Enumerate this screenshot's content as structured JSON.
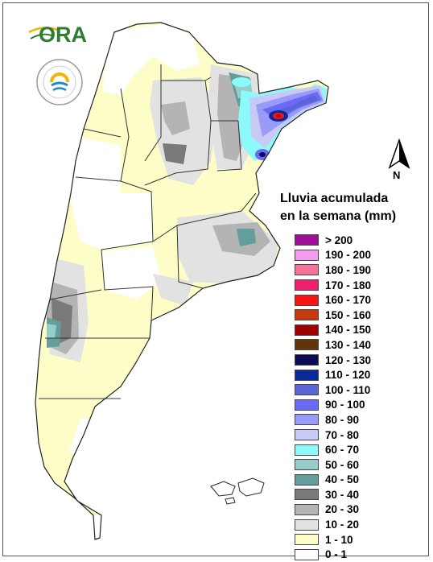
{
  "logo": {
    "text": "ORA"
  },
  "seal": {
    "text": "SERVICIO METEOROLÓGICO NACIONAL · ARGENTINA ·"
  },
  "north_arrow": {
    "label": "N"
  },
  "legend": {
    "title_line1": "Lluvia acumulada",
    "title_line2": "en la semana (mm)",
    "items": [
      {
        "label": "> 200",
        "color": "#9c0f96"
      },
      {
        "label": "190 - 200",
        "color": "#f59af2"
      },
      {
        "label": "180 - 190",
        "color": "#f5709a"
      },
      {
        "label": "170 - 180",
        "color": "#ef1f6e"
      },
      {
        "label": "160 - 170",
        "color": "#fb1313"
      },
      {
        "label": "150 - 160",
        "color": "#c83a0e"
      },
      {
        "label": "140 - 150",
        "color": "#a00000"
      },
      {
        "label": "130 - 140",
        "color": "#63330a"
      },
      {
        "label": "120 - 130",
        "color": "#0a0a55"
      },
      {
        "label": "110 - 120",
        "color": "#0a2a9a"
      },
      {
        "label": "100 - 110",
        "color": "#5a66d6"
      },
      {
        "label": "90 - 100",
        "color": "#6a6af8"
      },
      {
        "label": "80 - 90",
        "color": "#9a9afa"
      },
      {
        "label": "70 - 80",
        "color": "#c8caf5"
      },
      {
        "label": "60 - 70",
        "color": "#8cfafa"
      },
      {
        "label": "50 - 60",
        "color": "#96ccca"
      },
      {
        "label": "40 - 50",
        "color": "#649e9c"
      },
      {
        "label": "30 - 40",
        "color": "#7a7a7a"
      },
      {
        "label": "20 - 30",
        "color": "#b4b4b4"
      },
      {
        "label": "10 - 20",
        "color": "#e2e2e2"
      },
      {
        "label": "1 - 10",
        "color": "#fdfdc8"
      },
      {
        "label": "0 - 1",
        "color": "#ffffff"
      }
    ]
  }
}
